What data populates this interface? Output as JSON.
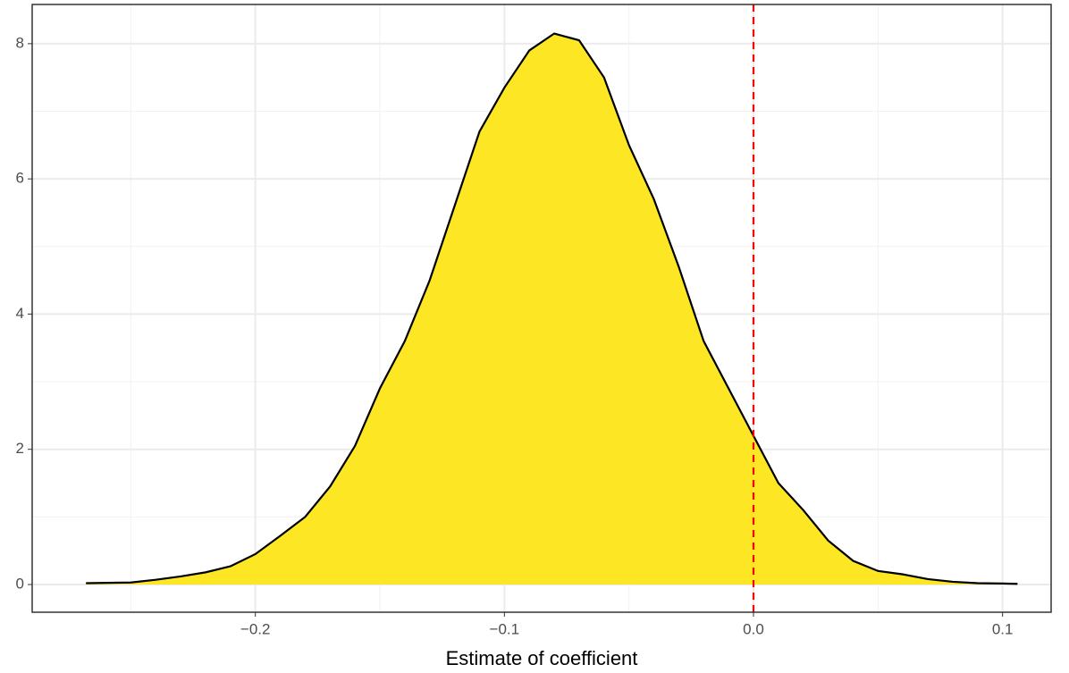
{
  "chart_data": {
    "type": "area",
    "x_label": "Estimate of coefficient",
    "x": [
      -0.268,
      -0.25,
      -0.24,
      -0.23,
      -0.22,
      -0.21,
      -0.2,
      -0.19,
      -0.18,
      -0.17,
      -0.16,
      -0.15,
      -0.14,
      -0.13,
      -0.12,
      -0.11,
      -0.1,
      -0.09,
      -0.08,
      -0.07,
      -0.06,
      -0.05,
      -0.04,
      -0.03,
      -0.02,
      -0.01,
      0.0,
      0.01,
      0.02,
      0.03,
      0.04,
      0.05,
      0.06,
      0.07,
      0.08,
      0.09,
      0.1,
      0.106
    ],
    "values": [
      0.02,
      0.03,
      0.07,
      0.12,
      0.18,
      0.27,
      0.45,
      0.72,
      1.0,
      1.45,
      2.05,
      2.9,
      3.6,
      4.5,
      5.6,
      6.7,
      7.35,
      7.9,
      8.15,
      8.05,
      7.5,
      6.5,
      5.7,
      4.7,
      3.6,
      2.9,
      2.2,
      1.5,
      1.1,
      0.65,
      0.35,
      0.2,
      0.15,
      0.08,
      0.04,
      0.02,
      0.015,
      0.01
    ],
    "fill": "#fde725",
    "color": "#000000",
    "vline": {
      "value": 0,
      "color": "#ff0000"
    },
    "xlim": [
      -0.2896,
      0.1195
    ],
    "xticks": [
      {
        "value": -0.2,
        "label": "−0.2"
      },
      {
        "value": -0.1,
        "label": "−0.1"
      },
      {
        "value": 0,
        "label": "0.0"
      },
      0.1
    ],
    "ylim": [
      -0.41,
      8.58
    ],
    "yticks": [
      0,
      2,
      4,
      6,
      8
    ],
    "grid": true
  }
}
